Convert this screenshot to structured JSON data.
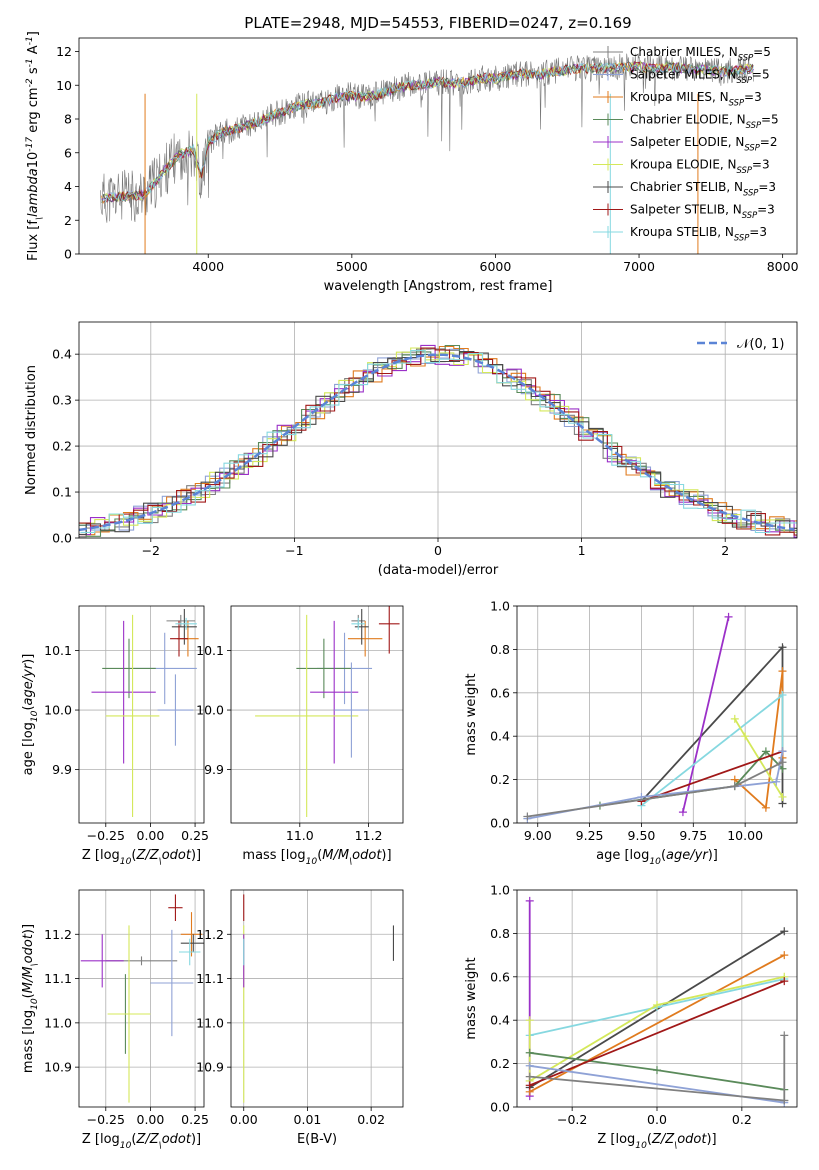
{
  "figure": {
    "title": "PLATE=2948, MJD=54553, FIBERID=0247, z=0.169"
  },
  "models": [
    {
      "name": "Chabrier MILES",
      "nssp": 5,
      "color": "#808080",
      "legend": "Chabrier MILES, N$_{SSP}$=5"
    },
    {
      "name": "Salpeter MILES",
      "nssp": 5,
      "color": "#8fa2d6",
      "legend": "Salpeter MILES, N$_{SSP}$=5"
    },
    {
      "name": "Kroupa MILES",
      "nssp": 3,
      "color": "#e07b1e",
      "legend": "Kroupa MILES, N$_{SSP}$=3"
    },
    {
      "name": "Chabrier ELODIE",
      "nssp": 5,
      "color": "#5a8a5a",
      "legend": "Chabrier ELODIE, N$_{SSP}$=5"
    },
    {
      "name": "Salpeter ELODIE",
      "nssp": 2,
      "color": "#9b30c8",
      "legend": "Salpeter ELODIE, N$_{SSP}$=2"
    },
    {
      "name": "Kroupa ELODIE",
      "nssp": 3,
      "color": "#d4e85a",
      "legend": "Kroupa ELODIE, N$_{SSP}$=3"
    },
    {
      "name": "Chabrier STELIB",
      "nssp": 3,
      "color": "#4a4a4a",
      "legend": "Chabrier STELIB, N$_{SSP}$=3"
    },
    {
      "name": "Salpeter STELIB",
      "nssp": 3,
      "color": "#a01818",
      "legend": "Salpeter STELIB, N$_{SSP}$=3"
    },
    {
      "name": "Kroupa STELIB",
      "nssp": 3,
      "color": "#86d8e0",
      "legend": "Kroupa STELIB, N$_{SSP}$=3"
    }
  ],
  "chart_data": [
    {
      "id": "spectrum",
      "type": "line",
      "xlabel": "wavelength [Angstrom, rest frame]",
      "ylabel": "Flux [f$_\\lambda$10$^{-17}$ erg cm$^{-2}$ s$^{-1}$ A$^{-1}$]",
      "xlim": [
        3100,
        8100
      ],
      "ylim": [
        0,
        12.8
      ],
      "xticks": [
        4000,
        5000,
        6000,
        7000,
        8000
      ],
      "yticks": [
        0,
        2,
        4,
        6,
        8,
        10,
        12
      ],
      "grid": false,
      "legend": "right",
      "envelope": {
        "x": [
          3250,
          3400,
          3550,
          3650,
          3700,
          3800,
          3900,
          3950,
          4000,
          4100,
          4200,
          4300,
          4400,
          4500,
          4600,
          4700,
          4800,
          4900,
          5000,
          5100,
          5200,
          5300,
          5400,
          5500,
          5600,
          5700,
          5800,
          5900,
          6000,
          6100,
          6200,
          6300,
          6400,
          6500,
          6600,
          6700,
          6800,
          6900,
          7000,
          7100,
          7200,
          7300,
          7400,
          7500,
          7600,
          7700,
          7800
        ],
        "y": [
          3.3,
          3.4,
          3.5,
          4.4,
          5.0,
          5.9,
          6.2,
          4.5,
          6.6,
          7.2,
          7.4,
          7.7,
          8.0,
          8.4,
          8.7,
          8.9,
          9.0,
          9.3,
          9.4,
          9.3,
          9.5,
          9.8,
          10.0,
          10.0,
          10.2,
          10.1,
          10.2,
          10.4,
          10.4,
          10.6,
          10.7,
          10.6,
          10.8,
          10.9,
          11.0,
          11.0,
          11.0,
          11.1,
          11.1,
          11.0,
          11.1,
          11.0,
          10.9,
          10.9,
          10.8,
          10.9,
          11.0
        ]
      }
    },
    {
      "id": "residuals",
      "type": "line",
      "xlabel": "(data-model)/error",
      "ylabel": "Normed distribution",
      "xlim": [
        -2.5,
        2.5
      ],
      "ylim": [
        0,
        0.47
      ],
      "xticks": [
        -2,
        -1,
        0,
        1,
        2
      ],
      "yticks": [
        0.0,
        0.1,
        0.2,
        0.3,
        0.4
      ],
      "grid": true,
      "legend": "top-right",
      "legend_label": "$\\mathcal{N}(0,1)$",
      "gaussian_color": "#5b84d6"
    },
    {
      "id": "age-vs-Z",
      "type": "scatter",
      "xlabel": "Z [log$_{10}$($Z/Z_\\odot$)]",
      "ylabel": "age  [log$_{10}$($age/yr$)]",
      "xlim": [
        -0.4,
        0.3
      ],
      "ylim": [
        9.81,
        10.175
      ],
      "xticks": [
        -0.25,
        0.0,
        0.25
      ],
      "xtick_labels": [
        "−0.25",
        "0.00",
        "0.25"
      ],
      "yticks": [
        9.9,
        10.0,
        10.1
      ],
      "grid": true,
      "points": [
        {
          "model": 0,
          "x": 0.17,
          "y": 10.15,
          "xerr": 0.08,
          "yerr": 0.01
        },
        {
          "model": 1,
          "x": 0.08,
          "y": 10.07,
          "xerr": 0.18,
          "yerr": 0.06
        },
        {
          "model": 2,
          "x": 0.21,
          "y": 10.12,
          "xerr": 0.06,
          "yerr": 0.03
        },
        {
          "model": 3,
          "x": -0.12,
          "y": 10.07,
          "xerr": 0.15,
          "yerr": 0.05
        },
        {
          "model": 4,
          "x": -0.15,
          "y": 10.03,
          "xerr": 0.18,
          "yerr": 0.12
        },
        {
          "model": 5,
          "x": -0.1,
          "y": 9.99,
          "xerr": 0.15,
          "yerr": 0.17
        },
        {
          "model": 6,
          "x": 0.19,
          "y": 10.14,
          "xerr": 0.07,
          "yerr": 0.03
        },
        {
          "model": 7,
          "x": 0.16,
          "y": 10.12,
          "xerr": 0.05,
          "yerr": 0.03
        },
        {
          "model": 8,
          "x": 0.2,
          "y": 10.145,
          "xerr": 0.06,
          "yerr": 0.01
        },
        {
          "model": 1,
          "x": 0.14,
          "y": 10.0,
          "xerr": 0.1,
          "yerr": 0.06
        }
      ]
    },
    {
      "id": "age-vs-mass",
      "type": "scatter",
      "xlabel": "mass [log$_{10}$($M/M_\\odot$)]",
      "xlim": [
        10.8,
        11.3
      ],
      "ylim": [
        9.81,
        10.175
      ],
      "xticks": [
        11.0,
        11.2
      ],
      "xtick_labels": [
        "11.0",
        "11.2"
      ],
      "yticks": [
        9.9,
        10.0,
        10.1
      ],
      "grid": true,
      "points": [
        {
          "model": 0,
          "x": 11.17,
          "y": 10.15,
          "xerr": 0.02,
          "yerr": 0.01
        },
        {
          "model": 1,
          "x": 11.13,
          "y": 10.07,
          "xerr": 0.08,
          "yerr": 0.06
        },
        {
          "model": 2,
          "x": 11.19,
          "y": 10.12,
          "xerr": 0.05,
          "yerr": 0.03
        },
        {
          "model": 3,
          "x": 11.07,
          "y": 10.07,
          "xerr": 0.08,
          "yerr": 0.05
        },
        {
          "model": 4,
          "x": 11.1,
          "y": 10.03,
          "xerr": 0.07,
          "yerr": 0.12
        },
        {
          "model": 5,
          "x": 11.02,
          "y": 9.99,
          "xerr": 0.15,
          "yerr": 0.17
        },
        {
          "model": 6,
          "x": 11.18,
          "y": 10.14,
          "xerr": 0.02,
          "yerr": 0.03
        },
        {
          "model": 7,
          "x": 11.26,
          "y": 10.145,
          "xerr": 0.03,
          "yerr": 0.05
        },
        {
          "model": 8,
          "x": 11.17,
          "y": 10.145,
          "xerr": 0.02,
          "yerr": 0.01
        },
        {
          "model": 1,
          "x": 11.15,
          "y": 10.0,
          "xerr": 0.05,
          "yerr": 0.08
        }
      ]
    },
    {
      "id": "mass-weight-vs-age",
      "type": "line",
      "xlabel": "age  [log$_{10}$($age/yr$)]",
      "ylabel": "mass weight",
      "xlim": [
        8.9,
        10.25
      ],
      "ylim": [
        0,
        1.0
      ],
      "xticks": [
        9.0,
        9.25,
        9.5,
        9.75,
        10.0
      ],
      "xtick_labels": [
        "9.00",
        "9.25",
        "9.50",
        "9.75",
        "10.00"
      ],
      "yticks": [
        0.0,
        0.2,
        0.4,
        0.6,
        0.8,
        1.0
      ],
      "grid": true,
      "series": [
        {
          "model": 6,
          "x": [
            9.5,
            10.18,
            10.18
          ],
          "y": [
            0.1,
            0.81,
            0.09
          ]
        },
        {
          "model": 4,
          "x": [
            9.7,
            9.92
          ],
          "y": [
            0.05,
            0.95
          ]
        },
        {
          "model": 2,
          "x": [
            9.95,
            10.1,
            10.18,
            10.18
          ],
          "y": [
            0.2,
            0.07,
            0.7,
            0.3
          ]
        },
        {
          "model": 8,
          "x": [
            9.5,
            10.18,
            10.18
          ],
          "y": [
            0.08,
            0.59,
            0.33
          ]
        },
        {
          "model": 5,
          "x": [
            9.95,
            10.0,
            10.18
          ],
          "y": [
            0.48,
            0.4,
            0.12
          ]
        },
        {
          "model": 3,
          "x": [
            9.3,
            9.95,
            10.1,
            10.18
          ],
          "y": [
            0.08,
            0.17,
            0.33,
            0.25
          ]
        },
        {
          "model": 7,
          "x": [
            9.5,
            10.18
          ],
          "y": [
            0.1,
            0.33
          ]
        },
        {
          "model": 1,
          "x": [
            8.95,
            9.5,
            10.15,
            10.18
          ],
          "y": [
            0.02,
            0.12,
            0.19,
            0.33
          ]
        },
        {
          "model": 0,
          "x": [
            8.95,
            9.95,
            10.18
          ],
          "y": [
            0.03,
            0.17,
            0.28
          ]
        }
      ]
    },
    {
      "id": "mass-vs-Z",
      "type": "scatter",
      "xlabel": "Z [log$_{10}$($Z/Z_\\odot$)]",
      "ylabel": "mass [log$_{10}$($M/M_\\odot$)]",
      "xlim": [
        -0.4,
        0.3
      ],
      "ylim": [
        10.81,
        11.3
      ],
      "xticks": [
        -0.25,
        0.0,
        0.25
      ],
      "xtick_labels": [
        "−0.25",
        "0.00",
        "0.25"
      ],
      "yticks": [
        10.9,
        11.0,
        11.1,
        11.2
      ],
      "grid": true,
      "points": [
        {
          "model": 0,
          "x": -0.05,
          "y": 11.14,
          "xerr": 0.2,
          "yerr": 0.01
        },
        {
          "model": 1,
          "x": 0.12,
          "y": 11.09,
          "xerr": 0.12,
          "yerr": 0.12
        },
        {
          "model": 2,
          "x": 0.23,
          "y": 11.2,
          "xerr": 0.06,
          "yerr": 0.05
        },
        {
          "model": 3,
          "x": -0.14,
          "y": 11.02,
          "xerr": 0.06,
          "yerr": 0.09
        },
        {
          "model": 4,
          "x": -0.27,
          "y": 11.14,
          "xerr": 0.12,
          "yerr": 0.06
        },
        {
          "model": 5,
          "x": -0.12,
          "y": 11.02,
          "xerr": 0.12,
          "yerr": 0.2
        },
        {
          "model": 6,
          "x": 0.24,
          "y": 11.18,
          "xerr": 0.07,
          "yerr": 0.02
        },
        {
          "model": 7,
          "x": 0.14,
          "y": 11.26,
          "xerr": 0.04,
          "yerr": 0.03
        },
        {
          "model": 8,
          "x": 0.22,
          "y": 11.16,
          "xerr": 0.06,
          "yerr": 0.03
        }
      ]
    },
    {
      "id": "mass-vs-EBV",
      "type": "scatter",
      "xlabel": "E(B-V)",
      "xlim": [
        -0.002,
        0.025
      ],
      "ylim": [
        10.81,
        11.3
      ],
      "xticks": [
        0.0,
        0.01,
        0.02
      ],
      "xtick_labels": [
        "0.00",
        "0.01",
        "0.02"
      ],
      "yticks": [
        10.9,
        11.0,
        11.1,
        11.2
      ],
      "grid": true,
      "points": [
        {
          "model": 5,
          "x": 0.0,
          "y": 11.02,
          "xerr": 0.0,
          "yerr": 0.2
        },
        {
          "model": 4,
          "x": 0.0,
          "y": 11.14,
          "xerr": 0.0,
          "yerr": 0.06
        },
        {
          "model": 8,
          "x": 0.0,
          "y": 11.16,
          "xerr": 0.0,
          "yerr": 0.03
        },
        {
          "model": 7,
          "x": 0.0,
          "y": 11.26,
          "xerr": 0.0,
          "yerr": 0.03
        },
        {
          "model": 6,
          "x": 0.0235,
          "y": 11.18,
          "xerr": 0.0,
          "yerr": 0.04
        }
      ]
    },
    {
      "id": "mass-weight-vs-Z",
      "type": "line",
      "xlabel": "Z [log$_{10}$($Z/Z_\\odot$)]",
      "ylabel": "mass weight",
      "xlim": [
        -0.33,
        0.33
      ],
      "ylim": [
        0,
        1.0
      ],
      "xticks": [
        -0.2,
        0.0,
        0.2
      ],
      "xtick_labels": [
        "−0.2",
        "0.0",
        "0.2"
      ],
      "yticks": [
        0.0,
        0.2,
        0.4,
        0.6,
        0.8,
        1.0
      ],
      "grid": true,
      "series": [
        {
          "model": 4,
          "x": [
            -0.3,
            -0.3
          ],
          "y": [
            0.95,
            0.05
          ]
        },
        {
          "model": 6,
          "x": [
            -0.3,
            0.3
          ],
          "y": [
            0.09,
            0.81
          ]
        },
        {
          "model": 2,
          "x": [
            -0.3,
            0.3
          ],
          "y": [
            0.07,
            0.7
          ]
        },
        {
          "model": 8,
          "x": [
            -0.3,
            0.0,
            0.3
          ],
          "y": [
            0.33,
            0.46,
            0.59
          ]
        },
        {
          "model": 5,
          "x": [
            -0.3,
            -0.3,
            0.0,
            0.3
          ],
          "y": [
            0.4,
            0.12,
            0.47,
            0.6
          ]
        },
        {
          "model": 3,
          "x": [
            -0.3,
            0.0,
            0.3
          ],
          "y": [
            0.25,
            0.17,
            0.08
          ]
        },
        {
          "model": 7,
          "x": [
            -0.3,
            0.3
          ],
          "y": [
            0.1,
            0.58
          ]
        },
        {
          "model": 1,
          "x": [
            -0.3,
            0.3
          ],
          "y": [
            0.19,
            0.02
          ]
        },
        {
          "model": 0,
          "x": [
            -0.3,
            0.3
          ],
          "y": [
            0.14,
            0.03
          ]
        },
        {
          "model": 0,
          "x": [
            0.3,
            0.3
          ],
          "y": [
            0.03,
            0.33
          ]
        }
      ]
    }
  ]
}
